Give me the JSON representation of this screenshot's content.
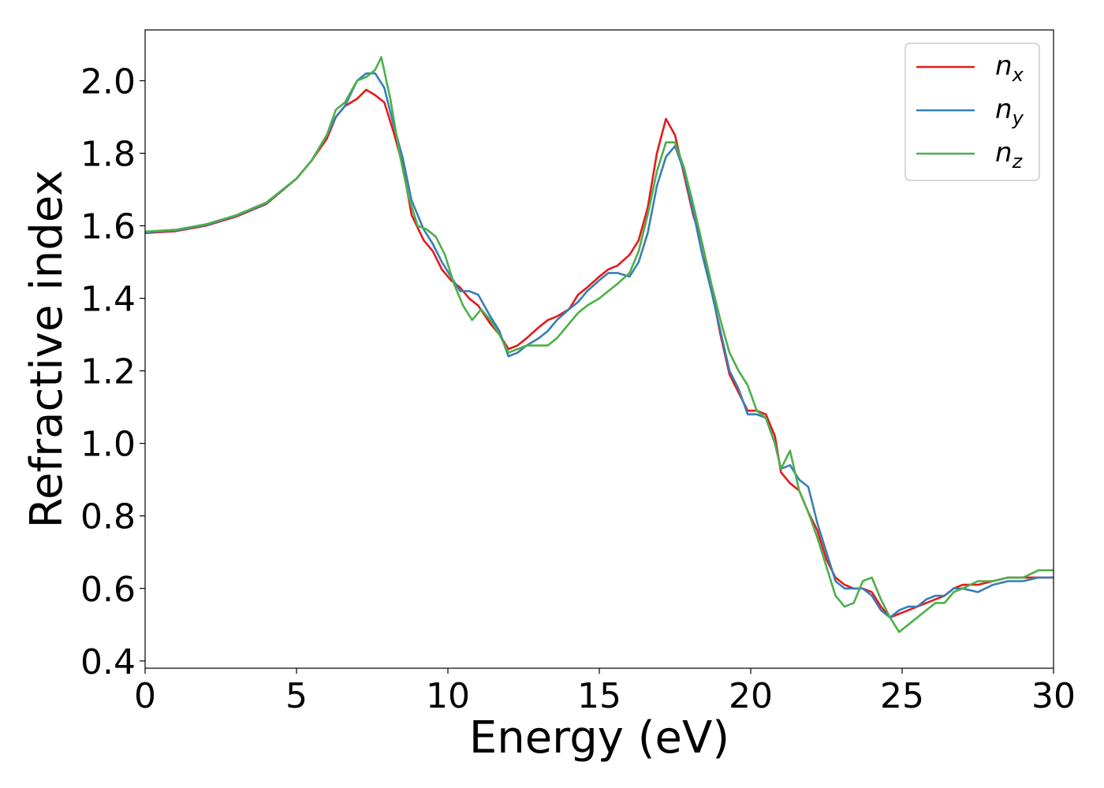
{
  "chart_data": {
    "type": "line",
    "title": "",
    "xlabel": "Energy (eV)",
    "ylabel": "Refractive index",
    "xlim": [
      0,
      30
    ],
    "ylim": [
      0.38,
      2.14
    ],
    "xticks": [
      0,
      5,
      10,
      15,
      20,
      25,
      30
    ],
    "yticks": [
      0.4,
      0.6,
      0.8,
      1.0,
      1.2,
      1.4,
      1.6,
      1.8,
      2.0
    ],
    "xtick_labels": [
      "0",
      "5",
      "10",
      "15",
      "20",
      "25",
      "30"
    ],
    "ytick_labels": [
      "0.4",
      "0.6",
      "0.8",
      "1.0",
      "1.2",
      "1.4",
      "1.6",
      "1.8",
      "2.0"
    ],
    "grid": false,
    "legend_position": "top-right",
    "series": [
      {
        "name": "n_x",
        "label_base": "n",
        "label_sub": "x",
        "color": "#e41a1c",
        "points": [
          [
            0,
            1.58
          ],
          [
            1,
            1.585
          ],
          [
            2,
            1.6
          ],
          [
            3,
            1.625
          ],
          [
            4,
            1.66
          ],
          [
            5,
            1.73
          ],
          [
            5.5,
            1.78
          ],
          [
            6,
            1.84
          ],
          [
            6.3,
            1.9
          ],
          [
            6.6,
            1.93
          ],
          [
            7,
            1.95
          ],
          [
            7.3,
            1.975
          ],
          [
            7.6,
            1.96
          ],
          [
            7.9,
            1.94
          ],
          [
            8.2,
            1.86
          ],
          [
            8.5,
            1.77
          ],
          [
            8.8,
            1.63
          ],
          [
            9.2,
            1.56
          ],
          [
            9.5,
            1.53
          ],
          [
            9.8,
            1.48
          ],
          [
            10.1,
            1.45
          ],
          [
            10.4,
            1.43
          ],
          [
            10.7,
            1.4
          ],
          [
            11,
            1.38
          ],
          [
            11.4,
            1.33
          ],
          [
            11.7,
            1.3
          ],
          [
            12,
            1.26
          ],
          [
            12.3,
            1.27
          ],
          [
            12.6,
            1.29
          ],
          [
            13,
            1.32
          ],
          [
            13.3,
            1.34
          ],
          [
            13.6,
            1.35
          ],
          [
            14,
            1.37
          ],
          [
            14.3,
            1.41
          ],
          [
            14.6,
            1.43
          ],
          [
            15,
            1.46
          ],
          [
            15.3,
            1.48
          ],
          [
            15.6,
            1.49
          ],
          [
            16,
            1.52
          ],
          [
            16.3,
            1.56
          ],
          [
            16.6,
            1.65
          ],
          [
            16.9,
            1.8
          ],
          [
            17.2,
            1.895
          ],
          [
            17.5,
            1.85
          ],
          [
            17.8,
            1.74
          ],
          [
            18.1,
            1.63
          ],
          [
            18.4,
            1.55
          ],
          [
            18.7,
            1.43
          ],
          [
            19,
            1.3
          ],
          [
            19.3,
            1.19
          ],
          [
            19.6,
            1.14
          ],
          [
            19.9,
            1.09
          ],
          [
            20.2,
            1.09
          ],
          [
            20.5,
            1.08
          ],
          [
            20.8,
            1.02
          ],
          [
            21,
            0.92
          ],
          [
            21.3,
            0.89
          ],
          [
            21.6,
            0.87
          ],
          [
            21.9,
            0.81
          ],
          [
            22.2,
            0.76
          ],
          [
            22.5,
            0.68
          ],
          [
            22.8,
            0.63
          ],
          [
            23.1,
            0.61
          ],
          [
            23.4,
            0.6
          ],
          [
            23.7,
            0.6
          ],
          [
            24,
            0.59
          ],
          [
            24.3,
            0.55
          ],
          [
            24.6,
            0.52
          ],
          [
            24.9,
            0.53
          ],
          [
            25.2,
            0.54
          ],
          [
            25.5,
            0.55
          ],
          [
            25.8,
            0.56
          ],
          [
            26.1,
            0.57
          ],
          [
            26.4,
            0.58
          ],
          [
            26.7,
            0.6
          ],
          [
            27,
            0.61
          ],
          [
            27.5,
            0.61
          ],
          [
            28,
            0.62
          ],
          [
            28.5,
            0.63
          ],
          [
            29,
            0.63
          ],
          [
            29.5,
            0.63
          ],
          [
            30,
            0.63
          ]
        ]
      },
      {
        "name": "n_y",
        "label_base": "n",
        "label_sub": "y",
        "color": "#377eb8",
        "points": [
          [
            0,
            1.582
          ],
          [
            1,
            1.587
          ],
          [
            2,
            1.602
          ],
          [
            3,
            1.627
          ],
          [
            4,
            1.662
          ],
          [
            5,
            1.73
          ],
          [
            5.5,
            1.78
          ],
          [
            6,
            1.85
          ],
          [
            6.3,
            1.9
          ],
          [
            6.6,
            1.93
          ],
          [
            7,
            2.0
          ],
          [
            7.3,
            2.02
          ],
          [
            7.6,
            2.02
          ],
          [
            7.9,
            1.98
          ],
          [
            8.2,
            1.88
          ],
          [
            8.5,
            1.79
          ],
          [
            8.8,
            1.67
          ],
          [
            9.2,
            1.59
          ],
          [
            9.5,
            1.55
          ],
          [
            9.8,
            1.5
          ],
          [
            10.1,
            1.46
          ],
          [
            10.4,
            1.42
          ],
          [
            10.7,
            1.42
          ],
          [
            11,
            1.41
          ],
          [
            11.4,
            1.35
          ],
          [
            11.7,
            1.31
          ],
          [
            12,
            1.24
          ],
          [
            12.3,
            1.25
          ],
          [
            12.6,
            1.27
          ],
          [
            13,
            1.29
          ],
          [
            13.3,
            1.31
          ],
          [
            13.6,
            1.34
          ],
          [
            14,
            1.37
          ],
          [
            14.3,
            1.39
          ],
          [
            14.6,
            1.42
          ],
          [
            15,
            1.45
          ],
          [
            15.3,
            1.47
          ],
          [
            15.6,
            1.47
          ],
          [
            16,
            1.46
          ],
          [
            16.3,
            1.5
          ],
          [
            16.6,
            1.58
          ],
          [
            16.9,
            1.71
          ],
          [
            17.2,
            1.79
          ],
          [
            17.5,
            1.82
          ],
          [
            17.8,
            1.75
          ],
          [
            18.1,
            1.64
          ],
          [
            18.4,
            1.52
          ],
          [
            18.7,
            1.42
          ],
          [
            19,
            1.31
          ],
          [
            19.3,
            1.2
          ],
          [
            19.6,
            1.15
          ],
          [
            19.9,
            1.08
          ],
          [
            20.2,
            1.08
          ],
          [
            20.5,
            1.07
          ],
          [
            20.8,
            1.0
          ],
          [
            21,
            0.93
          ],
          [
            21.3,
            0.94
          ],
          [
            21.6,
            0.9
          ],
          [
            21.9,
            0.88
          ],
          [
            22.2,
            0.78
          ],
          [
            22.5,
            0.7
          ],
          [
            22.8,
            0.62
          ],
          [
            23.1,
            0.6
          ],
          [
            23.4,
            0.6
          ],
          [
            23.7,
            0.6
          ],
          [
            24,
            0.58
          ],
          [
            24.3,
            0.54
          ],
          [
            24.6,
            0.52
          ],
          [
            24.9,
            0.54
          ],
          [
            25.2,
            0.55
          ],
          [
            25.5,
            0.55
          ],
          [
            25.8,
            0.57
          ],
          [
            26.1,
            0.58
          ],
          [
            26.4,
            0.58
          ],
          [
            26.7,
            0.6
          ],
          [
            27,
            0.6
          ],
          [
            27.5,
            0.59
          ],
          [
            28,
            0.61
          ],
          [
            28.5,
            0.62
          ],
          [
            29,
            0.62
          ],
          [
            29.5,
            0.63
          ],
          [
            30,
            0.63
          ]
        ]
      },
      {
        "name": "n_z",
        "label_base": "n",
        "label_sub": "z",
        "color": "#4daf4a",
        "points": [
          [
            0,
            1.584
          ],
          [
            1,
            1.589
          ],
          [
            2,
            1.604
          ],
          [
            3,
            1.629
          ],
          [
            4,
            1.664
          ],
          [
            5,
            1.73
          ],
          [
            5.5,
            1.78
          ],
          [
            6,
            1.85
          ],
          [
            6.3,
            1.92
          ],
          [
            6.6,
            1.94
          ],
          [
            7,
            2.0
          ],
          [
            7.3,
            2.01
          ],
          [
            7.6,
            2.03
          ],
          [
            7.8,
            2.065
          ],
          [
            8.1,
            1.95
          ],
          [
            8.4,
            1.8
          ],
          [
            8.7,
            1.68
          ],
          [
            9.0,
            1.6
          ],
          [
            9.3,
            1.59
          ],
          [
            9.6,
            1.57
          ],
          [
            9.9,
            1.52
          ],
          [
            10.2,
            1.44
          ],
          [
            10.5,
            1.38
          ],
          [
            10.8,
            1.34
          ],
          [
            11.1,
            1.37
          ],
          [
            11.4,
            1.34
          ],
          [
            11.7,
            1.3
          ],
          [
            12,
            1.25
          ],
          [
            12.3,
            1.26
          ],
          [
            12.6,
            1.27
          ],
          [
            13,
            1.27
          ],
          [
            13.3,
            1.27
          ],
          [
            13.6,
            1.29
          ],
          [
            14,
            1.33
          ],
          [
            14.3,
            1.36
          ],
          [
            14.6,
            1.38
          ],
          [
            15,
            1.4
          ],
          [
            15.3,
            1.42
          ],
          [
            15.6,
            1.44
          ],
          [
            16,
            1.47
          ],
          [
            16.3,
            1.53
          ],
          [
            16.6,
            1.63
          ],
          [
            16.9,
            1.75
          ],
          [
            17.2,
            1.83
          ],
          [
            17.5,
            1.83
          ],
          [
            17.8,
            1.76
          ],
          [
            18.1,
            1.66
          ],
          [
            18.4,
            1.55
          ],
          [
            18.7,
            1.44
          ],
          [
            19,
            1.34
          ],
          [
            19.3,
            1.25
          ],
          [
            19.6,
            1.2
          ],
          [
            19.9,
            1.16
          ],
          [
            20.2,
            1.09
          ],
          [
            20.5,
            1.07
          ],
          [
            20.8,
            1.0
          ],
          [
            21,
            0.93
          ],
          [
            21.3,
            0.98
          ],
          [
            21.6,
            0.87
          ],
          [
            21.9,
            0.81
          ],
          [
            22.2,
            0.74
          ],
          [
            22.5,
            0.66
          ],
          [
            22.8,
            0.58
          ],
          [
            23.1,
            0.55
          ],
          [
            23.4,
            0.56
          ],
          [
            23.7,
            0.62
          ],
          [
            24,
            0.63
          ],
          [
            24.3,
            0.57
          ],
          [
            24.6,
            0.52
          ],
          [
            24.9,
            0.48
          ],
          [
            25.2,
            0.5
          ],
          [
            25.5,
            0.52
          ],
          [
            25.8,
            0.54
          ],
          [
            26.1,
            0.56
          ],
          [
            26.4,
            0.56
          ],
          [
            26.7,
            0.59
          ],
          [
            27,
            0.6
          ],
          [
            27.5,
            0.62
          ],
          [
            28,
            0.62
          ],
          [
            28.5,
            0.63
          ],
          [
            29,
            0.63
          ],
          [
            29.5,
            0.65
          ],
          [
            30,
            0.65
          ]
        ]
      }
    ]
  }
}
